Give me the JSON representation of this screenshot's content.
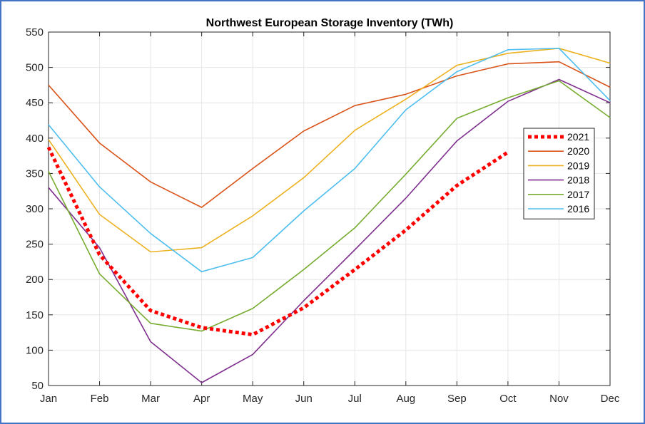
{
  "chart_data": {
    "type": "line",
    "title": "Northwest European Storage Inventory (TWh)",
    "xlabel": "",
    "ylabel": "",
    "categories": [
      "Jan",
      "Feb",
      "Mar",
      "Apr",
      "May",
      "Jun",
      "Jul",
      "Aug",
      "Sep",
      "Oct",
      "Nov",
      "Dec"
    ],
    "ylim": [
      50,
      550
    ],
    "yticks": [
      50,
      100,
      150,
      200,
      250,
      300,
      350,
      400,
      450,
      500,
      550
    ],
    "grid": true,
    "legend_position": "right",
    "series": [
      {
        "name": "2021",
        "color": "#ff0000",
        "style": "dotted",
        "values": [
          387,
          235,
          156,
          132,
          122,
          160,
          214,
          270,
          333,
          380
        ]
      },
      {
        "name": "2020",
        "color": "#d95319",
        "style": "solid",
        "values": [
          475,
          393,
          338,
          302,
          357,
          410,
          446,
          462,
          488,
          505,
          508,
          472
        ]
      },
      {
        "name": "2019",
        "color": "#edb120",
        "style": "solid",
        "values": [
          398,
          292,
          239,
          245,
          290,
          344,
          411,
          455,
          503,
          520,
          527,
          506
        ]
      },
      {
        "name": "2018",
        "color": "#7e2f8e",
        "style": "solid",
        "values": [
          330,
          245,
          112,
          54,
          94,
          170,
          242,
          315,
          396,
          452,
          483,
          450
        ]
      },
      {
        "name": "2017",
        "color": "#77ac30",
        "style": "solid",
        "values": [
          353,
          208,
          138,
          127,
          159,
          214,
          273,
          349,
          428,
          457,
          481,
          429
        ]
      },
      {
        "name": "2016",
        "color": "#4dbeee",
        "style": "solid",
        "values": [
          419,
          331,
          265,
          211,
          231,
          297,
          357,
          440,
          494,
          525,
          527,
          453
        ]
      }
    ]
  }
}
